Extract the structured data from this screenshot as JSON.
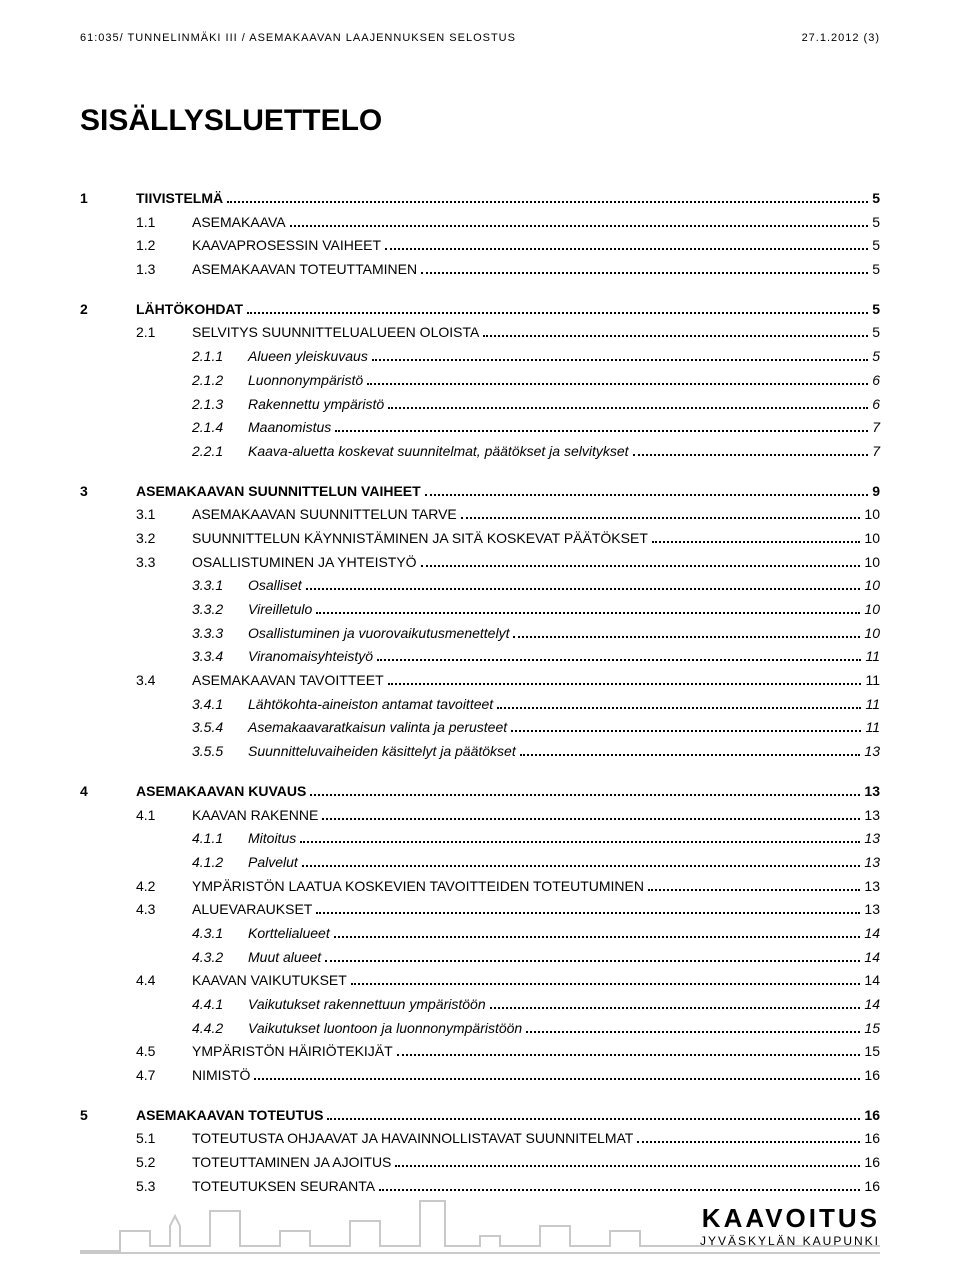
{
  "header": {
    "left": "61:035/ TUNNELINMÄKI III / ASEMAKAAVAN LAAJENNUKSEN SELOSTUS",
    "right": "27.1.2012  (3)"
  },
  "title": "SISÄLLYSLUETTELO",
  "toc": [
    {
      "level": 1,
      "num": "1",
      "label": "TIIVISTELMÄ",
      "page": "5"
    },
    {
      "level": 2,
      "num": "1.1",
      "label": "ASEMAKAAVA",
      "page": "5"
    },
    {
      "level": 2,
      "num": "1.2",
      "label": "KAAVAPROSESSIN VAIHEET",
      "page": "5"
    },
    {
      "level": 2,
      "num": "1.3",
      "label": "ASEMAKAAVAN TOTEUTTAMINEN",
      "page": "5"
    },
    {
      "level": 1,
      "num": "2",
      "label": "LÄHTÖKOHDAT",
      "page": "5"
    },
    {
      "level": 2,
      "num": "2.1",
      "label": "SELVITYS SUUNNITTELUALUEEN OLOISTA",
      "page": "5"
    },
    {
      "level": 3,
      "num": "2.1.1",
      "label": "Alueen yleiskuvaus",
      "page": "5"
    },
    {
      "level": 3,
      "num": "2.1.2",
      "label": "Luonnonympäristö",
      "page": "6"
    },
    {
      "level": 3,
      "num": "2.1.3",
      "label": "Rakennettu ympäristö",
      "page": "6"
    },
    {
      "level": 3,
      "num": "2.1.4",
      "label": "Maanomistus",
      "page": "7"
    },
    {
      "level": 3,
      "num": "2.2.1",
      "label": "Kaava-aluetta koskevat suunnitelmat, päätökset ja selvitykset",
      "page": "7"
    },
    {
      "level": 1,
      "num": "3",
      "label": "ASEMAKAAVAN SUUNNITTELUN VAIHEET",
      "page": "9"
    },
    {
      "level": 2,
      "num": "3.1",
      "label": "ASEMAKAAVAN SUUNNITTELUN TARVE",
      "page": "10"
    },
    {
      "level": 2,
      "num": "3.2",
      "label": "SUUNNITTELUN KÄYNNISTÄMINEN JA SITÄ KOSKEVAT PÄÄTÖKSET",
      "page": "10"
    },
    {
      "level": 2,
      "num": "3.3",
      "label": "OSALLISTUMINEN JA YHTEISTYÖ",
      "page": "10"
    },
    {
      "level": 3,
      "num": "3.3.1",
      "label": "Osalliset",
      "page": "10"
    },
    {
      "level": 3,
      "num": "3.3.2",
      "label": "Vireilletulo",
      "page": "10"
    },
    {
      "level": 3,
      "num": "3.3.3",
      "label": "Osallistuminen ja vuorovaikutusmenettelyt",
      "page": "10"
    },
    {
      "level": 3,
      "num": "3.3.4",
      "label": "Viranomaisyhteistyö",
      "page": "11"
    },
    {
      "level": 2,
      "num": "3.4",
      "label": "ASEMAKAAVAN TAVOITTEET",
      "page": "11"
    },
    {
      "level": 3,
      "num": "3.4.1",
      "label": "Lähtökohta-aineiston antamat tavoitteet",
      "page": "11"
    },
    {
      "level": 3,
      "num": "3.5.4",
      "label": "Asemakaavaratkaisun valinta ja perusteet",
      "page": "11"
    },
    {
      "level": 3,
      "num": "3.5.5",
      "label": "Suunnitteluvaiheiden käsittelyt ja päätökset",
      "page": "13"
    },
    {
      "level": 1,
      "num": "4",
      "label": "ASEMAKAAVAN KUVAUS",
      "page": "13"
    },
    {
      "level": 2,
      "num": "4.1",
      "label": "KAAVAN RAKENNE",
      "page": "13"
    },
    {
      "level": 3,
      "num": "4.1.1",
      "label": "Mitoitus",
      "page": "13"
    },
    {
      "level": 3,
      "num": "4.1.2",
      "label": "Palvelut",
      "page": "13"
    },
    {
      "level": 2,
      "num": "4.2",
      "label": "YMPÄRISTÖN LAATUA KOSKEVIEN TAVOITTEIDEN TOTEUTUMINEN",
      "page": "13"
    },
    {
      "level": 2,
      "num": "4.3",
      "label": "ALUEVARAUKSET",
      "page": "13"
    },
    {
      "level": 3,
      "num": "4.3.1",
      "label": "Korttelialueet",
      "page": "14"
    },
    {
      "level": 3,
      "num": "4.3.2",
      "label": "Muut alueet",
      "page": "14"
    },
    {
      "level": 2,
      "num": "4.4",
      "label": "KAAVAN VAIKUTUKSET",
      "page": "14"
    },
    {
      "level": 3,
      "num": "4.4.1",
      "label": "Vaikutukset rakennettuun ympäristöön",
      "page": "14"
    },
    {
      "level": 3,
      "num": "4.4.2",
      "label": "Vaikutukset luontoon ja luonnonympäristöön",
      "page": "15"
    },
    {
      "level": 2,
      "num": "4.5",
      "label": "YMPÄRISTÖN HÄIRIÖTEKIJÄT",
      "page": "15"
    },
    {
      "level": 2,
      "num": "4.7",
      "label": "NIMISTÖ",
      "page": "16"
    },
    {
      "level": 1,
      "num": "5",
      "label": "ASEMAKAAVAN TOTEUTUS",
      "page": "16"
    },
    {
      "level": 2,
      "num": "5.1",
      "label": "TOTEUTUSTA OHJAAVAT JA HAVAINNOLLISTAVAT SUUNNITELMAT",
      "page": "16"
    },
    {
      "level": 2,
      "num": "5.2",
      "label": "TOTEUTTAMINEN JA AJOITUS",
      "page": "16"
    },
    {
      "level": 2,
      "num": "5.3",
      "label": "TOTEUTUKSEN SEURANTA",
      "page": "16"
    }
  ],
  "footer": {
    "big": "KAAVOITUS",
    "small": "JYVÄSKYLÄN KAUPUNKI"
  }
}
